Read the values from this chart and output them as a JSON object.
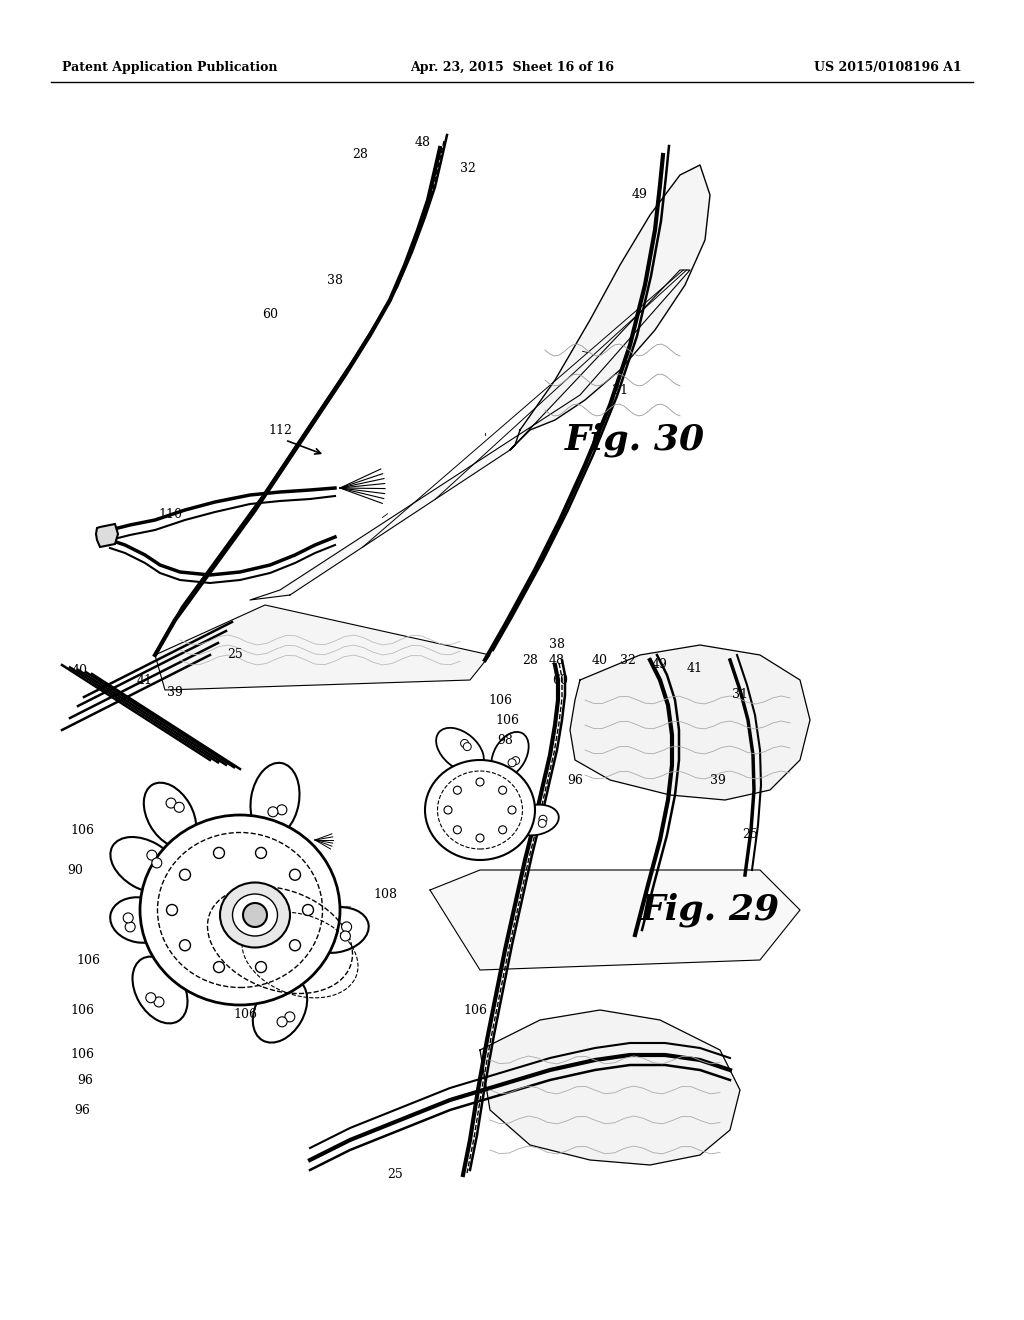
{
  "background_color": "#ffffff",
  "header_left": "Patent Application Publication",
  "header_center": "Apr. 23, 2015  Sheet 16 of 16",
  "header_right": "US 2015/0108196 A1",
  "fig30_label": "Fig. 30",
  "fig29_label": "Fig. 29"
}
